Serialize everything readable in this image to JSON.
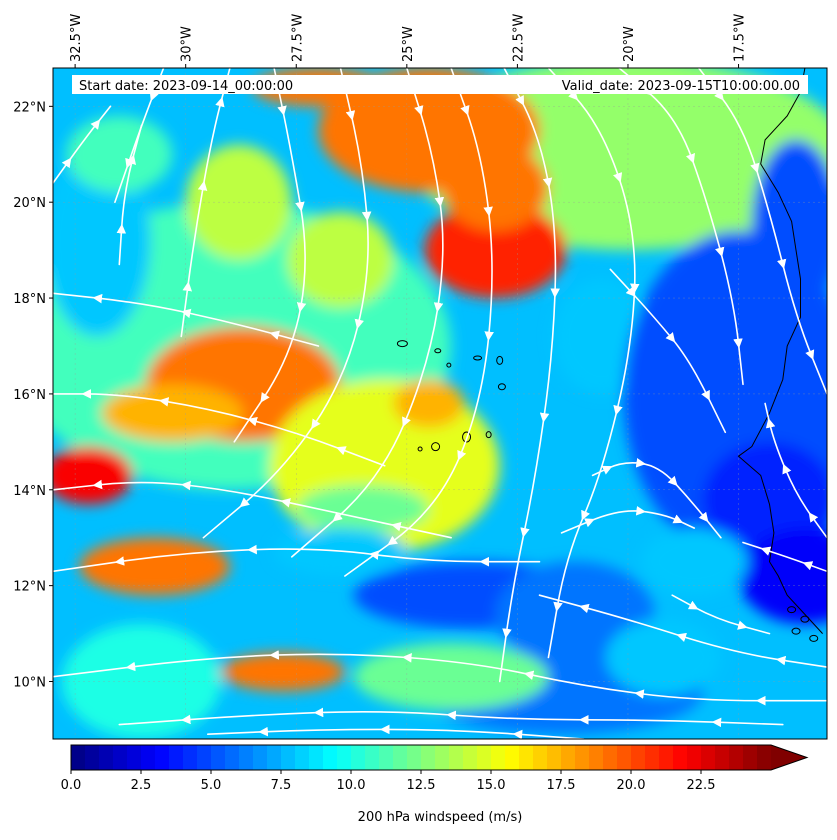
{
  "header": {
    "start_date": "Start date: 2023-09-14_00:00:00",
    "valid_date": "Valid_date: 2023-09-15T10:00:00.00"
  },
  "map": {
    "variable": "200 hPa windspeed (m/s)",
    "lon_range": [
      -33.0,
      -15.5
    ],
    "lat_range": [
      8.8,
      22.8
    ],
    "lon_ticks": [
      {
        "value": -32.5,
        "label": "32.5°W"
      },
      {
        "value": -30.0,
        "label": "30°W"
      },
      {
        "value": -27.5,
        "label": "27.5°W"
      },
      {
        "value": -25.0,
        "label": "25°W"
      },
      {
        "value": -22.5,
        "label": "22.5°W"
      },
      {
        "value": -20.0,
        "label": "20°W"
      },
      {
        "value": -17.5,
        "label": "17.5°W"
      }
    ],
    "lat_ticks": [
      {
        "value": 22,
        "label": "22°N"
      },
      {
        "value": 20,
        "label": "20°N"
      },
      {
        "value": 18,
        "label": "18°N"
      },
      {
        "value": 16,
        "label": "16°N"
      },
      {
        "value": 14,
        "label": "14°N"
      },
      {
        "value": 12,
        "label": "12°N"
      },
      {
        "value": 10,
        "label": "10°N"
      }
    ],
    "streamline_color": "#ffffff",
    "coastline_color": "#000000"
  },
  "colorbar": {
    "label": "200 hPa windspeed (m/s)",
    "min": 0,
    "max": 25,
    "extend": "max",
    "colormap": "jet",
    "ticks": [
      {
        "value": 0,
        "label": "0.0"
      },
      {
        "value": 2.5,
        "label": "2.5"
      },
      {
        "value": 5,
        "label": "5.0"
      },
      {
        "value": 7.5,
        "label": "7.5"
      },
      {
        "value": 10,
        "label": "10.0"
      },
      {
        "value": 12.5,
        "label": "12.5"
      },
      {
        "value": 15,
        "label": "15.0"
      },
      {
        "value": 17.5,
        "label": "17.5"
      },
      {
        "value": 20,
        "label": "20.0"
      },
      {
        "value": 22.5,
        "label": "22.5"
      }
    ]
  }
}
